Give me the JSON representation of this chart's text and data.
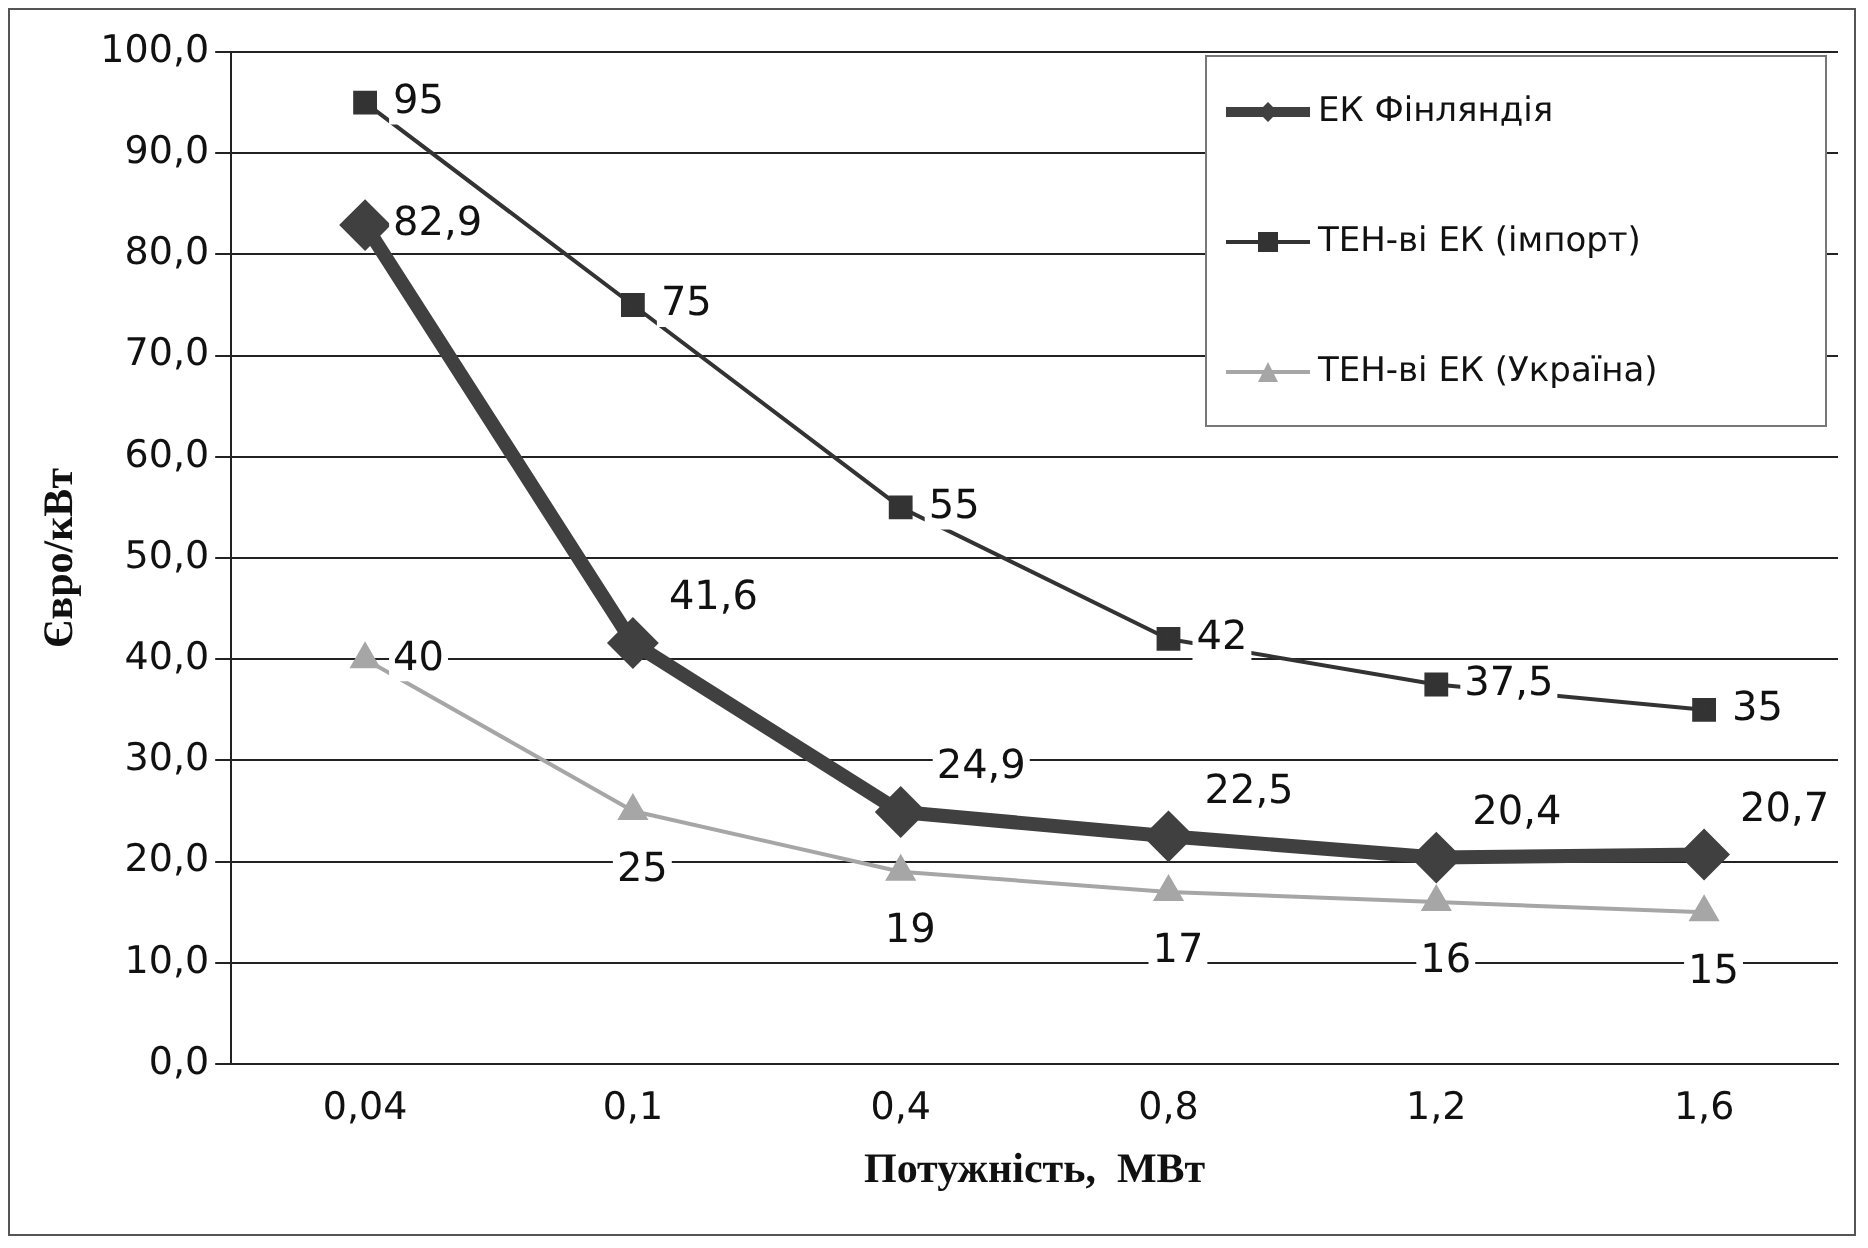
{
  "chart_data": {
    "type": "line",
    "xlabel": "Потужність,  МВт",
    "ylabel": "Євро/кВт",
    "categories": [
      "0,04",
      "0,1",
      "0,4",
      "0,8",
      "1,2",
      "1,6"
    ],
    "series": [
      {
        "name": "ЕК Фінляндія",
        "color": "#404040",
        "marker": "diamond",
        "values": [
          82.9,
          41.6,
          24.9,
          22.5,
          20.4,
          20.7
        ],
        "value_labels": [
          "82,9",
          "41,6",
          "24,9",
          "22,5",
          "20,4",
          "20,7"
        ]
      },
      {
        "name": "ТЕН-ві ЕК (імпорт)",
        "color": "#333333",
        "marker": "square",
        "values": [
          95,
          75,
          55,
          42,
          37.5,
          35
        ],
        "value_labels": [
          "95",
          "75",
          "55",
          "42",
          "37,5",
          "35"
        ]
      },
      {
        "name": "ТЕН-ві ЕК (Україна)",
        "color": "#a6a6a6",
        "marker": "triangle",
        "values": [
          40,
          25,
          19,
          17,
          16,
          15
        ],
        "value_labels": [
          "40",
          "25",
          "19",
          "17",
          "16",
          "15"
        ]
      }
    ],
    "ylim": [
      0,
      100
    ],
    "yticks": [
      {
        "value": 0,
        "label": "0,0"
      },
      {
        "value": 10,
        "label": "10,0"
      },
      {
        "value": 20,
        "label": "20,0"
      },
      {
        "value": 30,
        "label": "30,0"
      },
      {
        "value": 40,
        "label": "40,0"
      },
      {
        "value": 50,
        "label": "50,0"
      },
      {
        "value": 60,
        "label": "60,0"
      },
      {
        "value": 70,
        "label": "70,0"
      },
      {
        "value": 80,
        "label": "80,0"
      },
      {
        "value": 90,
        "label": "90,0"
      },
      {
        "value": 100,
        "label": "100,0"
      }
    ],
    "grid": "y",
    "legend": "top right",
    "line_style": "solid"
  }
}
